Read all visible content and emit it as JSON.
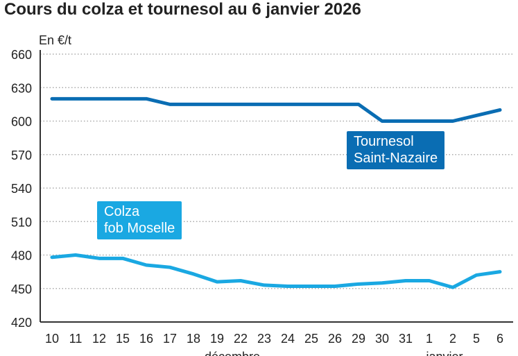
{
  "title": "Cours du colza et tournesol au 6 janvier 2026",
  "chart_data": {
    "type": "line",
    "title": "Cours du colza et tournesol au 6 janvier 2026",
    "ylabel": "En €/t",
    "ylim": [
      420,
      660
    ],
    "yticks": [
      420,
      450,
      480,
      510,
      540,
      570,
      600,
      630,
      660
    ],
    "grid": true,
    "categories": [
      "10",
      "11",
      "12",
      "15",
      "16",
      "17",
      "18",
      "19",
      "22",
      "23",
      "24",
      "25",
      "26",
      "29",
      "30",
      "31",
      "1",
      "2",
      "5",
      "6"
    ],
    "month_labels": [
      {
        "label": "décembre",
        "at": "22"
      },
      {
        "label": "janvier",
        "at": "2"
      }
    ],
    "series": [
      {
        "name": "Tournesol Saint-Nazaire",
        "label_lines": [
          "Tournesol",
          "Saint-Nazaire"
        ],
        "color": "#0a6db3",
        "values": [
          620,
          620,
          620,
          620,
          620,
          615,
          615,
          615,
          615,
          615,
          615,
          615,
          615,
          615,
          600,
          600,
          600,
          600,
          605,
          610
        ]
      },
      {
        "name": "Colza fob Moselle",
        "label_lines": [
          "Colza",
          "fob Moselle"
        ],
        "color": "#1aa8e2",
        "values": [
          478,
          480,
          477,
          477,
          471,
          469,
          463,
          456,
          457,
          453,
          452,
          452,
          452,
          454,
          455,
          457,
          457,
          451,
          462,
          465
        ]
      }
    ]
  }
}
